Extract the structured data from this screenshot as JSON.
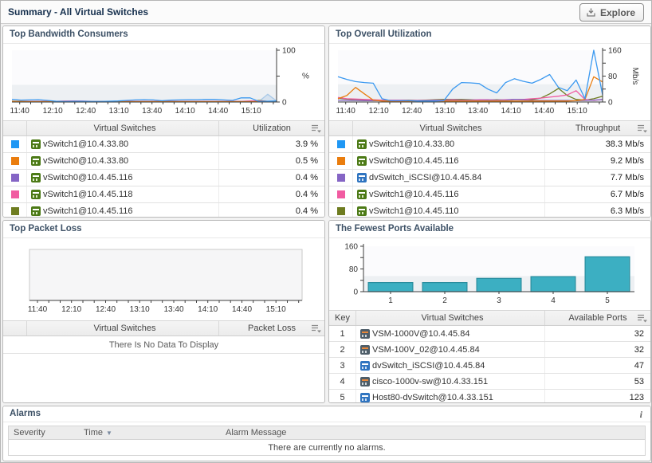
{
  "header": {
    "title": "Summary - All Virtual Switches",
    "explore_label": "Explore"
  },
  "panels": {
    "bandwidth": {
      "title": "Top Bandwidth Consumers",
      "headers": {
        "name": "Virtual Switches",
        "value": "Utilization"
      },
      "rows": [
        {
          "swatch": "#1f97f4",
          "icon": "vswitch",
          "name": "vSwitch1@10.4.33.80",
          "value": "3.9 %"
        },
        {
          "swatch": "#ea7d0e",
          "icon": "vswitch",
          "name": "vSwitch0@10.4.33.80",
          "value": "0.5 %"
        },
        {
          "swatch": "#8565c5",
          "icon": "vswitch",
          "name": "vSwitch0@10.4.45.116",
          "value": "0.4 %"
        },
        {
          "swatch": "#f15ba1",
          "icon": "vswitch",
          "name": "vSwitch1@10.4.45.118",
          "value": "0.4 %"
        },
        {
          "swatch": "#6e7c20",
          "icon": "vswitch",
          "name": "vSwitch1@10.4.45.116",
          "value": "0.4 %"
        }
      ]
    },
    "utilization": {
      "title": "Top Overall Utilization",
      "headers": {
        "name": "Virtual Switches",
        "value": "Throughput"
      },
      "rows": [
        {
          "swatch": "#1f97f4",
          "icon": "vswitch",
          "name": "vSwitch1@10.4.33.80",
          "value": "38.3 Mb/s"
        },
        {
          "swatch": "#ea7d0e",
          "icon": "vswitch",
          "name": "vSwitch0@10.4.45.116",
          "value": "9.2 Mb/s"
        },
        {
          "swatch": "#8565c5",
          "icon": "dvswitch",
          "name": "dvSwitch_iSCSI@10.4.45.84",
          "value": "7.7 Mb/s"
        },
        {
          "swatch": "#f15ba1",
          "icon": "vswitch",
          "name": "vSwitch1@10.4.45.116",
          "value": "6.7 Mb/s"
        },
        {
          "swatch": "#6e7c20",
          "icon": "vswitch",
          "name": "vSwitch1@10.4.45.110",
          "value": "6.3 Mb/s"
        }
      ]
    },
    "packetloss": {
      "title": "Top Packet Loss",
      "headers": {
        "name": "Virtual Switches",
        "value": "Packet Loss"
      },
      "empty_message": "There Is No Data To Display"
    },
    "ports": {
      "title": "The Fewest Ports Available",
      "headers": {
        "key": "Key",
        "name": "Virtual Switches",
        "value": "Available Ports"
      },
      "rows": [
        {
          "key": "1",
          "icon": "vsm",
          "name": "VSM-1000V@10.4.45.84",
          "value": "32"
        },
        {
          "key": "2",
          "icon": "vsm",
          "name": "VSM-100V_02@10.4.45.84",
          "value": "32"
        },
        {
          "key": "3",
          "icon": "dvswitch",
          "name": "dvSwitch_iSCSI@10.4.45.84",
          "value": "47"
        },
        {
          "key": "4",
          "icon": "vsm",
          "name": "cisco-1000v-sw@10.4.33.151",
          "value": "53"
        },
        {
          "key": "5",
          "icon": "dvswitch",
          "name": "Host80-dvSwitch@10.4.33.151",
          "value": "123"
        }
      ]
    },
    "alarms": {
      "title": "Alarms",
      "info": "i",
      "headers": {
        "severity": "Severity",
        "time": "Time",
        "sort": "▼",
        "message": "Alarm Message"
      },
      "empty_message": "There are currently no alarms."
    }
  },
  "chart_data": [
    {
      "id": "bandwidth",
      "type": "line",
      "title": "Top Bandwidth Consumers",
      "xlabel": "",
      "ylabel": "%",
      "ylabel_rotate": false,
      "ylim": [
        0,
        100
      ],
      "y_ticks": [
        0,
        50,
        100
      ],
      "y_tick_labels": [
        "0",
        "",
        "100"
      ],
      "y_axis_side": "right",
      "x_range": [
        0,
        240
      ],
      "x_minor": [
        7,
        10
      ],
      "x_tick_labels": [
        "11:40",
        "12:10",
        "12:40",
        "13:10",
        "13:40",
        "14:10",
        "14:40",
        "15:10"
      ],
      "x_tick_pos": [
        7,
        37,
        67,
        97,
        127,
        157,
        187,
        217
      ],
      "band_max": 33,
      "legend_position": "table-below",
      "series": [
        {
          "name": "vSwitch1@10.4.33.80",
          "color": "#3b99f0",
          "values": [
            5,
            3.5,
            4,
            4.5,
            3,
            1.5,
            1,
            1.5,
            1.5,
            1,
            1,
            1.5,
            2,
            3,
            4,
            4.5,
            4,
            2.5,
            3.5,
            4,
            4.5,
            4.5,
            5,
            5,
            4,
            3,
            8,
            8,
            1,
            1.5,
            2
          ]
        },
        {
          "name": "vSwitch0@10.4.33.80",
          "color": "#ea7d0e",
          "values": [
            1.5,
            1,
            0.8,
            0.8,
            0.8,
            0.8,
            0.8,
            0.8,
            0.8,
            0.8,
            0.8,
            0.8,
            0.8,
            0.8,
            0.8,
            0.8,
            0.8,
            0.8,
            0.8,
            0.8,
            0.8,
            0.8,
            0.8,
            0.8,
            0.8,
            0.8,
            0.8,
            0.8,
            0.8,
            1,
            1.5
          ]
        },
        {
          "name": "vSwitch0@10.4.45.116",
          "color": "#8565c5",
          "values": [
            1.2,
            1,
            0.8,
            0.8,
            0.8,
            0.8,
            0.8,
            0.8,
            0.8,
            0.8,
            0.8,
            0.8,
            0.8,
            0.8,
            0.8,
            0.8,
            0.8,
            0.8,
            0.8,
            0.8,
            0.8,
            0.8,
            0.8,
            0.8,
            0.8,
            0.8,
            0.8,
            0.8,
            0.8,
            0.8,
            1
          ]
        },
        {
          "name": "vSwitch1@10.4.45.118",
          "color": "#f15ba1",
          "values": [
            1,
            1,
            1,
            1,
            1,
            1.2,
            1.8,
            2,
            1.8,
            1.2,
            1,
            1,
            1,
            1,
            1,
            1,
            1,
            1,
            1,
            1,
            1,
            1,
            1,
            1,
            1,
            1,
            1,
            2,
            2,
            1.2,
            1
          ]
        },
        {
          "name": "vSwitch1@10.4.45.116",
          "color": "#6e7c20",
          "values": [
            0.8,
            0.8,
            0.8,
            0.8,
            0.8,
            0.8,
            0.8,
            0.8,
            0.8,
            0.8,
            0.8,
            0.8,
            0.8,
            0.8,
            0.8,
            0.8,
            0.8,
            0.8,
            0.8,
            0.8,
            0.8,
            0.8,
            0.8,
            0.8,
            0.8,
            0.8,
            0.8,
            1,
            3,
            1,
            0.8
          ]
        },
        {
          "name": "other",
          "color": "#a9c9e8",
          "fill": true,
          "values": [
            0,
            0,
            0,
            0,
            0,
            0,
            0,
            0,
            0,
            0,
            0,
            0,
            0,
            0,
            0,
            0,
            0,
            0,
            0,
            0,
            0,
            0,
            0,
            0,
            0,
            0,
            0,
            0,
            1,
            15,
            2
          ]
        }
      ]
    },
    {
      "id": "utilization",
      "type": "line",
      "title": "Top Overall Utilization",
      "xlabel": "",
      "ylabel": "Mb/s",
      "ylabel_rotate": true,
      "ylim": [
        0,
        160
      ],
      "y_ticks": [
        0,
        40,
        80,
        120,
        160
      ],
      "y_tick_labels": [
        "0",
        "",
        "80",
        "",
        "160"
      ],
      "y_axis_side": "right",
      "x_range": [
        0,
        240
      ],
      "x_minor": [
        7,
        10
      ],
      "x_tick_labels": [
        "11:40",
        "12:10",
        "12:40",
        "13:10",
        "13:40",
        "14:10",
        "14:40",
        "15:10"
      ],
      "x_tick_pos": [
        7,
        37,
        67,
        97,
        127,
        157,
        187,
        217
      ],
      "band_max": 55,
      "legend_position": "table-below",
      "series": [
        {
          "name": "vSwitch1@10.4.33.80",
          "color": "#3b99f0",
          "values": [
            78,
            70,
            63,
            60,
            58,
            10,
            4,
            4,
            4,
            3,
            3,
            3,
            4,
            40,
            60,
            59,
            57,
            40,
            28,
            60,
            72,
            64,
            58,
            70,
            85,
            45,
            35,
            68,
            10,
            160,
            22
          ]
        },
        {
          "name": "vSwitch0@10.4.45.116",
          "color": "#ea7d0e",
          "values": [
            10,
            20,
            45,
            25,
            6,
            3,
            3,
            3,
            3,
            2,
            2,
            2,
            3,
            3,
            3,
            3,
            3,
            3,
            3,
            3,
            3,
            3,
            3,
            3,
            3,
            3,
            3,
            4,
            8,
            78,
            62
          ]
        },
        {
          "name": "dvSwitch_iSCSI@10.4.45.84",
          "color": "#8565c5",
          "values": [
            6,
            5,
            5,
            4,
            4,
            4,
            4,
            4,
            4,
            4,
            4,
            5,
            5,
            5,
            5,
            5,
            5,
            6,
            5,
            6,
            8,
            7,
            5,
            5,
            5,
            5,
            5,
            4,
            5,
            6,
            8
          ]
        },
        {
          "name": "vSwitch1@10.4.45.116",
          "color": "#f15ba1",
          "values": [
            14,
            10,
            9,
            8,
            7,
            6,
            6,
            6,
            5,
            5,
            5,
            6,
            6,
            7,
            6,
            6,
            7,
            7,
            6,
            7,
            8,
            8,
            10,
            12,
            15,
            18,
            22,
            35,
            8,
            5,
            8
          ]
        },
        {
          "name": "vSwitch1@10.4.45.110",
          "color": "#6e7c20",
          "values": [
            12,
            9,
            7,
            6,
            5,
            5,
            5,
            6,
            6,
            5,
            6,
            7,
            8,
            8,
            8,
            7,
            6,
            6,
            7,
            6,
            8,
            8,
            8,
            12,
            25,
            42,
            20,
            8,
            6,
            10,
            18
          ]
        }
      ]
    },
    {
      "id": "packetloss",
      "type": "line",
      "title": "Top Packet Loss",
      "xlabel": "",
      "ylabel": "",
      "ylim": [
        0,
        1
      ],
      "y_axis_side": "none",
      "plot_border": true,
      "plot_bg": "#f6f6f7",
      "x_range": [
        0,
        240
      ],
      "x_minor": [
        7,
        10
      ],
      "x_tick_labels": [
        "11:40",
        "12:10",
        "12:40",
        "13:10",
        "13:40",
        "14:10",
        "14:40",
        "15:10"
      ],
      "x_tick_pos": [
        7,
        37,
        67,
        97,
        127,
        157,
        187,
        217
      ],
      "series": []
    },
    {
      "id": "ports",
      "type": "bar",
      "title": "The Fewest Ports Available",
      "xlabel": "",
      "ylabel": "",
      "categories": [
        "1",
        "2",
        "3",
        "4",
        "5"
      ],
      "values": [
        32,
        32,
        47,
        53,
        123
      ],
      "ylim": [
        0,
        160
      ],
      "y_ticks": [
        0,
        40,
        80,
        120,
        160
      ],
      "y_tick_labels": [
        "0",
        "",
        "80",
        "",
        "160"
      ],
      "band_max": 55,
      "bar_color": "#3cafc2",
      "bar_border": "#2a8d9e"
    }
  ]
}
